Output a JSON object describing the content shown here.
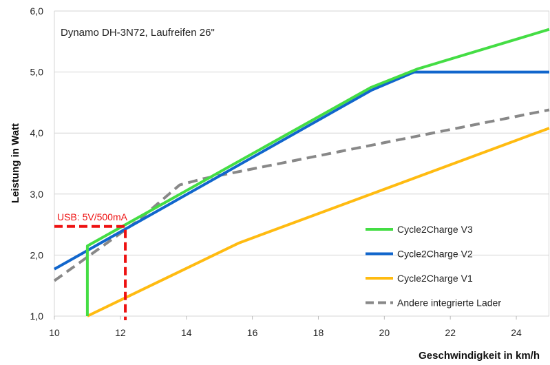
{
  "chart_data": {
    "type": "line",
    "title": "Dynamo DH-3N72, Laufreifen 26\"",
    "xlabel": "Geschwindigkeit in km/h",
    "ylabel": "Leistung in Watt",
    "xlim": [
      10,
      25
    ],
    "ylim": [
      1.0,
      6.0
    ],
    "xticks": [
      10,
      12,
      14,
      16,
      18,
      20,
      22,
      24
    ],
    "xtick_labels": [
      "10",
      "12",
      "14",
      "16",
      "18",
      "20",
      "22",
      "24"
    ],
    "yticks": [
      1,
      2,
      3,
      4,
      5,
      6
    ],
    "ytick_labels": [
      "1,0",
      "2,0",
      "3,0",
      "4,0",
      "5,0",
      "6,0"
    ],
    "grid": "horizontal",
    "legend_position": "bottom-right",
    "series": [
      {
        "name": "Cycle2Charge V3",
        "color": "#44dd44",
        "dash": false,
        "points": [
          [
            11,
            1.0
          ],
          [
            11,
            2.15
          ],
          [
            19.6,
            4.75
          ],
          [
            21,
            5.05
          ],
          [
            25,
            5.7
          ]
        ]
      },
      {
        "name": "Cycle2Charge V2",
        "color": "#1166cc",
        "dash": false,
        "points": [
          [
            10,
            1.77
          ],
          [
            19.6,
            4.7
          ],
          [
            20.9,
            5.0
          ],
          [
            25,
            5.0
          ]
        ]
      },
      {
        "name": "Cycle2Charge V1",
        "color": "#ffbb11",
        "dash": false,
        "points": [
          [
            11,
            1.0
          ],
          [
            15.6,
            2.2
          ],
          [
            25,
            4.08
          ]
        ]
      },
      {
        "name": "Andere integrierte Lader",
        "color": "#888888",
        "dash": true,
        "points": [
          [
            10,
            1.58
          ],
          [
            12.5,
            2.55
          ],
          [
            13.8,
            3.15
          ],
          [
            14.5,
            3.25
          ],
          [
            25,
            4.38
          ]
        ]
      }
    ],
    "annotations": [
      {
        "text": "USB: 5V/500mA",
        "color": "#ee1111",
        "x": 12.15,
        "y": 2.47
      }
    ]
  }
}
